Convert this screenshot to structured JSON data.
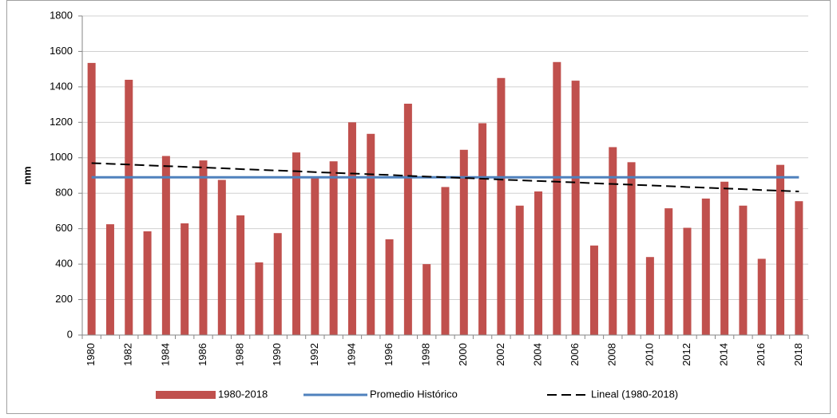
{
  "chart_data": {
    "type": "bar",
    "y_label": "mm",
    "categories": [
      "1980",
      null,
      "1982",
      null,
      "1984",
      null,
      "1986",
      null,
      "1988",
      null,
      "1990",
      null,
      "1992",
      null,
      "1994",
      null,
      "1996",
      null,
      "1998",
      null,
      "2000",
      null,
      "2002",
      null,
      "2004",
      null,
      "2006",
      null,
      "2008",
      null,
      "2010",
      null,
      "2012",
      null,
      "2014",
      null,
      "2016",
      null,
      "2018"
    ],
    "series": [
      {
        "name": "1980-2018",
        "type": "bar",
        "color": "#c0504d",
        "values": [
          1535,
          625,
          1440,
          585,
          1010,
          630,
          985,
          875,
          675,
          410,
          575,
          1030,
          890,
          980,
          1200,
          1135,
          540,
          1305,
          400,
          835,
          1045,
          1195,
          1450,
          730,
          810,
          1540,
          1435,
          505,
          1060,
          975,
          440,
          715,
          605,
          770,
          865,
          730,
          430,
          960,
          755
        ]
      },
      {
        "name": "Promedio Histórico",
        "type": "line",
        "color": "#4f81bd",
        "dash": false,
        "values": [
          890,
          890,
          890,
          890,
          890,
          890,
          890,
          890,
          890,
          890,
          890,
          890,
          890,
          890,
          890,
          890,
          890,
          890,
          890,
          890,
          890,
          890,
          890,
          890,
          890,
          890,
          890,
          890,
          890,
          890,
          890,
          890,
          890,
          890,
          890,
          890,
          890,
          890,
          890
        ]
      },
      {
        "name": "Lineal (1980-2018)",
        "type": "line",
        "color": "#000000",
        "dash": true,
        "values": [
          970,
          966,
          962,
          957,
          953,
          949,
          945,
          941,
          936,
          932,
          928,
          924,
          919,
          915,
          911,
          907,
          903,
          898,
          894,
          890,
          886,
          882,
          877,
          873,
          869,
          865,
          861,
          856,
          852,
          848,
          844,
          840,
          835,
          831,
          827,
          823,
          818,
          814,
          810
        ]
      }
    ],
    "ylim": [
      0,
      1800
    ],
    "yticks": [
      0,
      200,
      400,
      600,
      800,
      1000,
      1200,
      1400,
      1600,
      1800
    ],
    "grid": true,
    "legend": "bottom"
  }
}
